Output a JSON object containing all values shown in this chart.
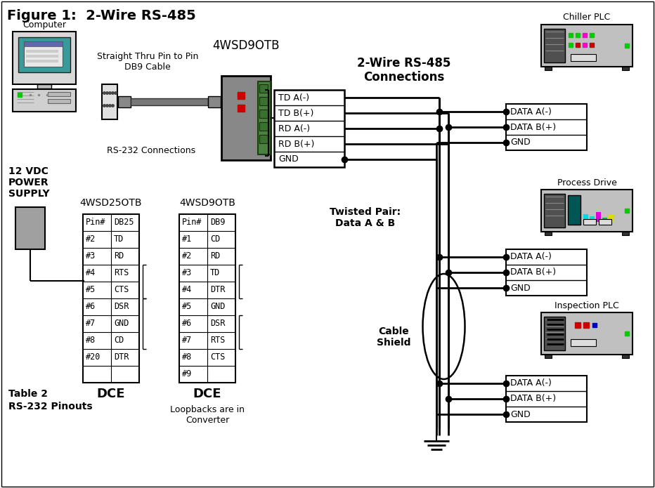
{
  "title": "Figure 1:  2-Wire RS-485",
  "bg_color": "#ffffff",
  "converter_label": "4WSD9OTB",
  "converter_terminals": [
    "TD A(-)",
    "TD B(+)",
    "RD A(-)",
    "RD B(+)",
    "GND"
  ],
  "db25_label": "4WSD25OTB",
  "db9_label": "4WSD9OTB",
  "db25_rows": [
    [
      "Pin#",
      "DB25"
    ],
    [
      "#2",
      "TD"
    ],
    [
      "#3",
      "RD"
    ],
    [
      "#4",
      "RTS"
    ],
    [
      "#5",
      "CTS"
    ],
    [
      "#6",
      "DSR"
    ],
    [
      "#7",
      "GND"
    ],
    [
      "#8",
      "CD"
    ],
    [
      "#20",
      "DTR"
    ],
    [
      "",
      ""
    ]
  ],
  "db9_rows": [
    [
      "Pin#",
      "DB9"
    ],
    [
      "#1",
      "CD"
    ],
    [
      "#2",
      "RD"
    ],
    [
      "#3",
      "TD"
    ],
    [
      "#4",
      "DTR"
    ],
    [
      "#5",
      "GND"
    ],
    [
      "#6",
      "DSR"
    ],
    [
      "#7",
      "RTS"
    ],
    [
      "#8",
      "CTS"
    ],
    [
      "#9",
      ""
    ]
  ],
  "chiller_label": "Chiller PLC",
  "process_label": "Process Drive",
  "inspection_label": "Inspection PLC",
  "device_terminals": [
    "DATA A(-)",
    "DATA B(+)",
    "GND"
  ],
  "connections_title": "2-Wire RS-485\nConnections",
  "twisted_pair_label": "Twisted Pair:\nData A & B",
  "cable_shield_label": "Cable\nShield",
  "rs232_label": "RS-232 Connections",
  "db9_cable_label": "Straight Thru Pin to Pin\nDB9 Cable",
  "computer_label": "Computer",
  "power_label": "12 VDC\nPOWER\nSUPPLY",
  "table_label": "Table 2",
  "pinouts_label": "RS-232 Pinouts",
  "dce_label": "DCE",
  "loopback_label": "Loopbacks are in\nConverter"
}
